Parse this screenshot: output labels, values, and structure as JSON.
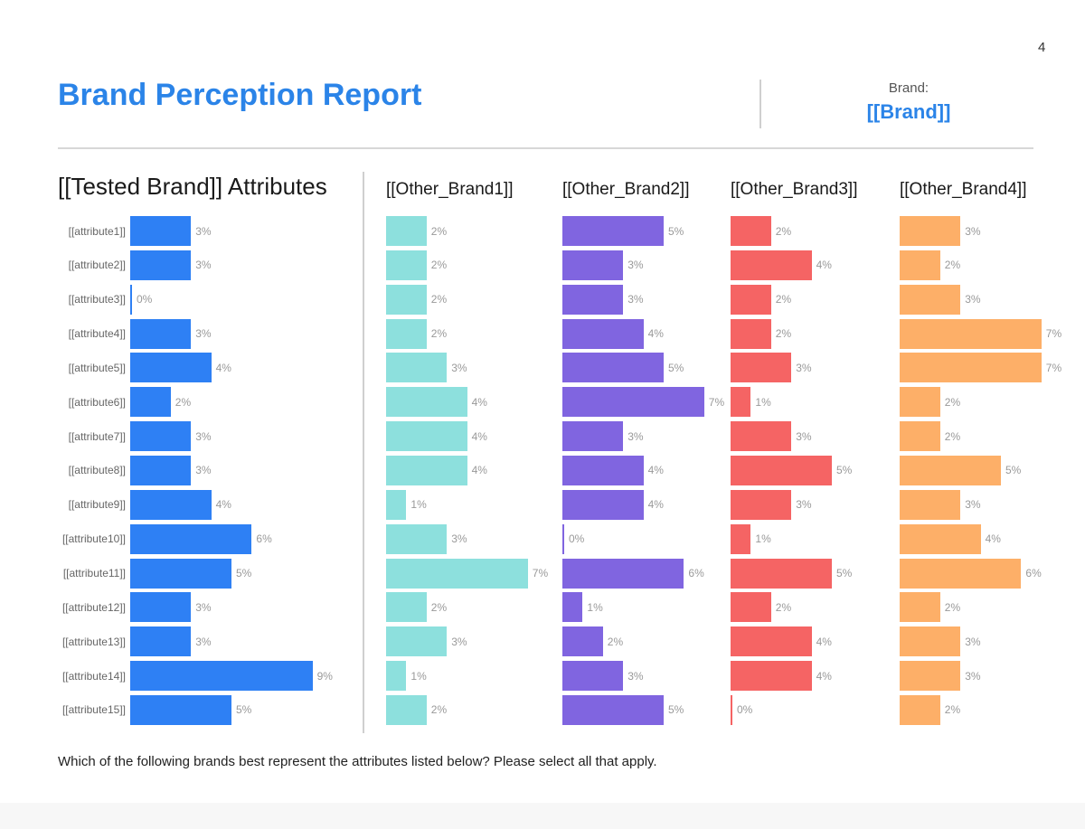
{
  "page_number": "4",
  "header": {
    "title": "Brand Perception Report",
    "brand_label": "Brand:",
    "brand_value": "[[Brand]]"
  },
  "footnote": "Which of the following brands best represent the attributes listed below? Please select all that apply.",
  "chart_data": {
    "type": "bar",
    "orientation": "horizontal",
    "title": "[[Tested Brand]] Attributes",
    "categories": [
      "[[attribute1]]",
      "[[attribute2]]",
      "[[attribute3]]",
      "[[attribute4]]",
      "[[attribute5]]",
      "[[attribute6]]",
      "[[attribute7]]",
      "[[attribute8]]",
      "[[attribute9]]",
      "[[attribute10]]",
      "[[attribute11]]",
      "[[attribute12]]",
      "[[attribute13]]",
      "[[attribute14]]",
      "[[attribute15]]"
    ],
    "series": [
      {
        "color": "#2e80f4",
        "values": [
          3,
          3,
          0,
          3,
          4,
          2,
          3,
          3,
          4,
          6,
          5,
          3,
          3,
          9,
          5
        ],
        "labels": [
          "3%",
          "3%",
          "0%",
          "3%",
          "4%",
          "2%",
          "3%",
          "3%",
          "4%",
          "6%",
          "5%",
          "3%",
          "3%",
          "9%",
          "5%"
        ]
      },
      {
        "name": "[[Other_Brand1]]",
        "color": "#8de0dd",
        "values": [
          2,
          2,
          2,
          2,
          3,
          4,
          4,
          4,
          1,
          3,
          7,
          2,
          3,
          1,
          2
        ],
        "labels": [
          "2%",
          "2%",
          "2%",
          "2%",
          "3%",
          "4%",
          "4%",
          "4%",
          "1%",
          "3%",
          "7%",
          "2%",
          "3%",
          "1%",
          "2%"
        ]
      },
      {
        "name": "[[Other_Brand2]]",
        "color": "#8065e0",
        "values": [
          5,
          3,
          3,
          4,
          5,
          7,
          3,
          4,
          4,
          0,
          6,
          1,
          2,
          3,
          5
        ],
        "labels": [
          "5%",
          "3%",
          "3%",
          "4%",
          "5%",
          "7%",
          "3%",
          "4%",
          "4%",
          "0%",
          "6%",
          "1%",
          "2%",
          "3%",
          "5%"
        ]
      },
      {
        "name": "[[Other_Brand3]]",
        "color": "#f56464",
        "values": [
          2,
          4,
          2,
          2,
          3,
          1,
          3,
          5,
          3,
          1,
          5,
          2,
          4,
          4,
          0
        ],
        "labels": [
          "2%",
          "4%",
          "2%",
          "2%",
          "3%",
          "1%",
          "3%",
          "5%",
          "3%",
          "1%",
          "5%",
          "2%",
          "4%",
          "4%",
          "0%"
        ]
      },
      {
        "name": "[[Other_Brand4]]",
        "color": "#fdaf68",
        "values": [
          3,
          2,
          3,
          7,
          7,
          2,
          2,
          5,
          3,
          4,
          6,
          2,
          3,
          3,
          2
        ],
        "labels": [
          "3%",
          "2%",
          "3%",
          "7%",
          "7%",
          "2%",
          "2%",
          "5%",
          "3%",
          "4%",
          "6%",
          "2%",
          "3%",
          "3%",
          "2%"
        ]
      }
    ]
  }
}
